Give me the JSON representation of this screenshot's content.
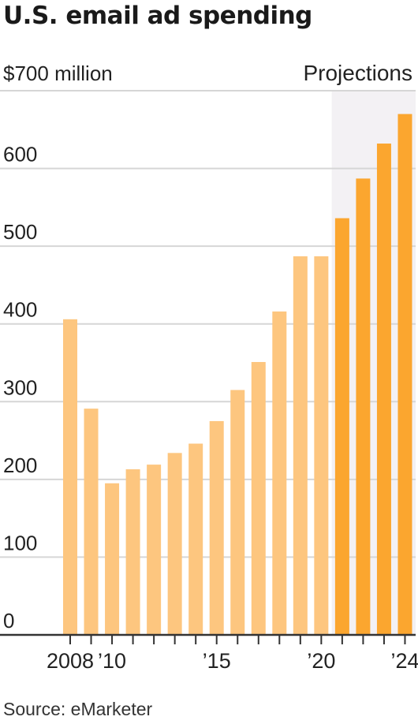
{
  "chart_data": {
    "type": "bar",
    "title": "U.S. email ad spending",
    "y_unit_label": "$700 million",
    "source": "Source: eMarketer",
    "projections_label": "Projections",
    "categories": [
      "2008",
      "2009",
      "2010",
      "2011",
      "2012",
      "2013",
      "2014",
      "2015",
      "2016",
      "2017",
      "2018",
      "2019",
      "2020",
      "2021",
      "2022",
      "2023",
      "2024"
    ],
    "values": [
      406,
      291,
      195,
      213,
      219,
      234,
      246,
      275,
      315,
      351,
      416,
      487,
      487,
      536,
      587,
      632,
      670
    ],
    "projected_from": "2021",
    "ylim": [
      0,
      700
    ],
    "yticks": [
      0,
      100,
      200,
      300,
      400,
      500,
      600
    ],
    "xtick_labels": [
      {
        "category": "2008",
        "label": "2008"
      },
      {
        "category": "2010",
        "label": "’10"
      },
      {
        "category": "2015",
        "label": "’15"
      },
      {
        "category": "2020",
        "label": "’20"
      },
      {
        "category": "2024",
        "label": "’24"
      }
    ],
    "grid": true,
    "colors": {
      "actual": "#FDC67F",
      "projected": "#FBA62F",
      "projection_band": "#F3F1F4",
      "grid": "#D6D6D6",
      "axis": "#333333"
    }
  }
}
